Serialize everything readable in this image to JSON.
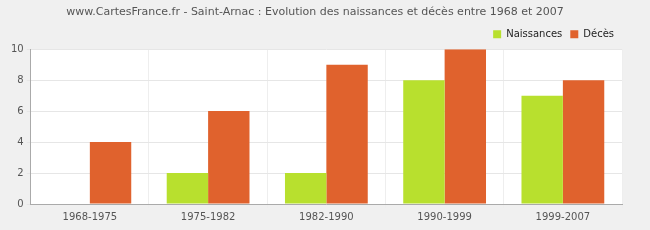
{
  "chart_data": {
    "type": "bar",
    "title": "www.CartesFrance.fr - Saint-Arnac : Evolution des naissances et décès entre 1968 et 2007",
    "categories": [
      "1968-1975",
      "1975-1982",
      "1982-1990",
      "1990-1999",
      "1999-2007"
    ],
    "series": [
      {
        "name": "Naissances",
        "color": "#b8e02e",
        "values": [
          0,
          2,
          2,
          8,
          7
        ]
      },
      {
        "name": "Décès",
        "color": "#e0622d",
        "values": [
          4,
          6,
          9,
          10,
          8
        ]
      }
    ],
    "ylim": [
      0,
      10
    ],
    "yticks": [
      0,
      2,
      4,
      6,
      8,
      10
    ],
    "grid": true,
    "legend": "top-right"
  }
}
